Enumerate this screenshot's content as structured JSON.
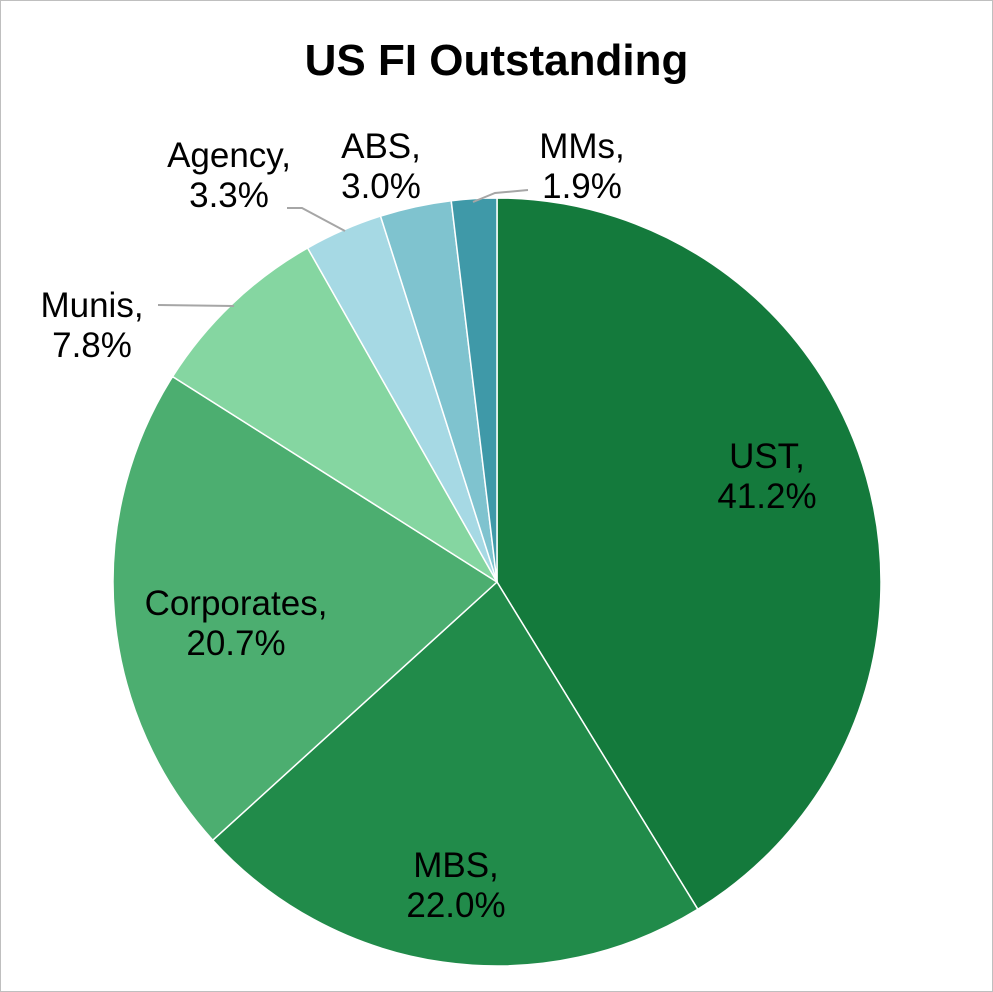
{
  "chart_data": {
    "type": "pie",
    "title": "US FI Outstanding",
    "categories": [
      "UST",
      "MBS",
      "Corporates",
      "Munis",
      "Agency",
      "ABS",
      "MMs"
    ],
    "values": [
      41.2,
      22.0,
      20.7,
      7.8,
      3.3,
      3.0,
      1.9
    ],
    "labels": [
      [
        "UST,",
        "41.2%"
      ],
      [
        "MBS,",
        "22.0%"
      ],
      [
        "Corporates,",
        "20.7%"
      ],
      [
        "Munis,",
        "7.8%"
      ],
      [
        "Agency,",
        "3.3%"
      ],
      [
        "ABS,",
        "3.0%"
      ],
      [
        "MMs,",
        "1.9%"
      ]
    ],
    "colors": [
      "#147a3c",
      "#218b4a",
      "#4cae70",
      "#85d6a1",
      "#a6d9e4",
      "#7fc3cf",
      "#3f99a8"
    ],
    "slice_border_color": "#ffffff",
    "leader_line_color": "#a6a6a6",
    "legend": "none"
  }
}
